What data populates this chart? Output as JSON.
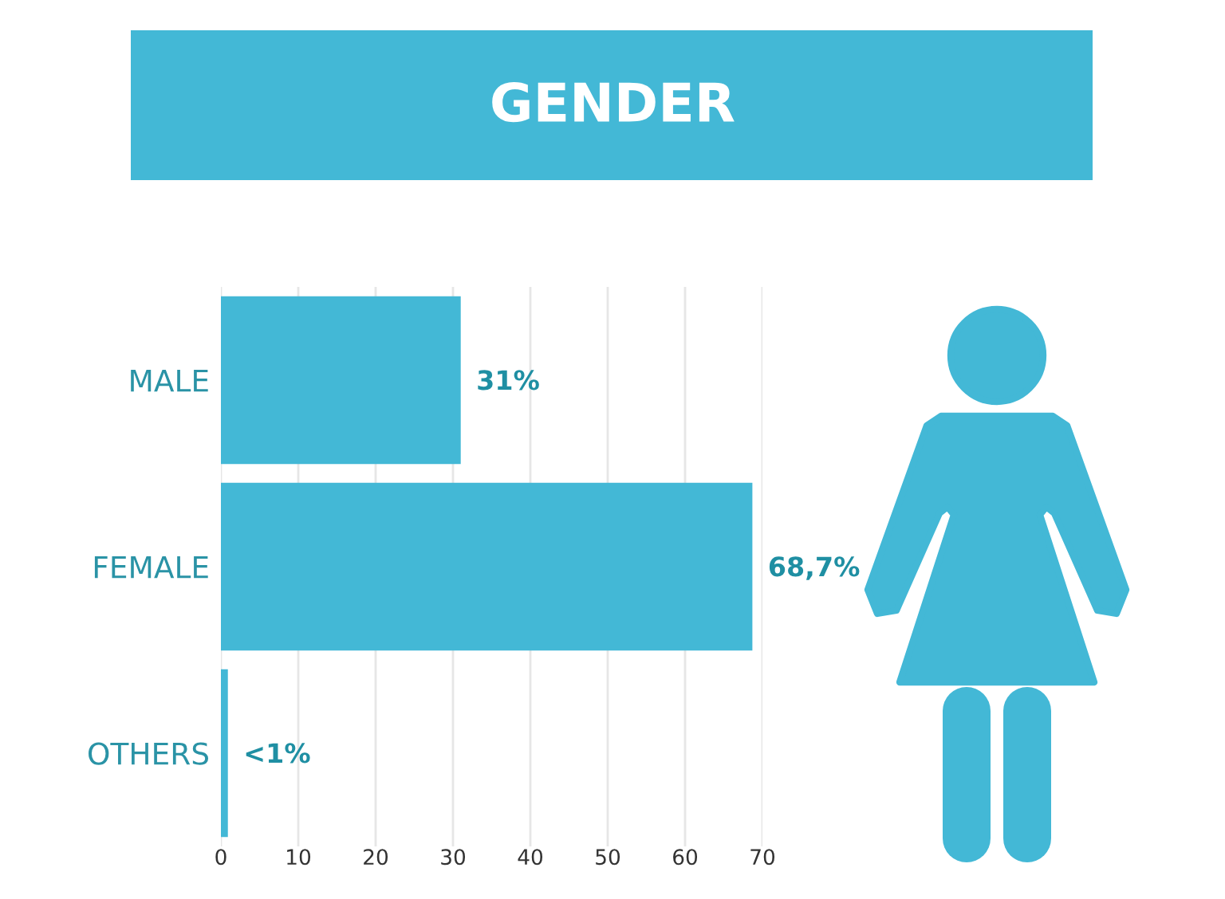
{
  "chart_data": {
    "type": "bar",
    "orientation": "horizontal",
    "title": "GENDER",
    "categories": [
      "MALE",
      "FEMALE",
      "OTHERS"
    ],
    "values": [
      31,
      68.7,
      0.9
    ],
    "value_labels": [
      "31%",
      "68,7%",
      "<1%"
    ],
    "color": "#43b8d6",
    "xlim": [
      0,
      70
    ],
    "xticks": [
      0,
      10,
      20,
      30,
      40,
      50,
      60,
      70
    ],
    "grid": "x"
  }
}
